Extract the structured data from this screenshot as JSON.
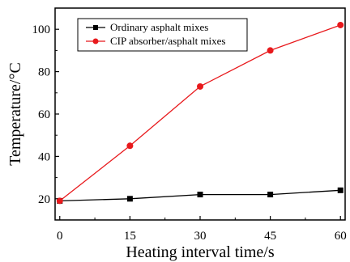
{
  "chart_data": {
    "type": "line",
    "xlabel": "Heating interval time/s",
    "ylabel": "Temperature/°C",
    "x": [
      0,
      15,
      30,
      45,
      60
    ],
    "xticks": [
      0,
      15,
      30,
      45,
      60
    ],
    "yticks": [
      20,
      40,
      60,
      80,
      100
    ],
    "xlim": [
      -1,
      61
    ],
    "ylim": [
      10,
      110
    ],
    "grid": false,
    "legend_position": "top-left",
    "series": [
      {
        "name": "Ordinary asphalt mixes",
        "values": [
          19,
          20,
          22,
          22,
          24
        ],
        "color": "#000000",
        "marker": "square"
      },
      {
        "name": "CIP absorber/asphalt mixes",
        "values": [
          19,
          45,
          73,
          90,
          102
        ],
        "color": "#e8191c",
        "marker": "circle"
      }
    ]
  }
}
